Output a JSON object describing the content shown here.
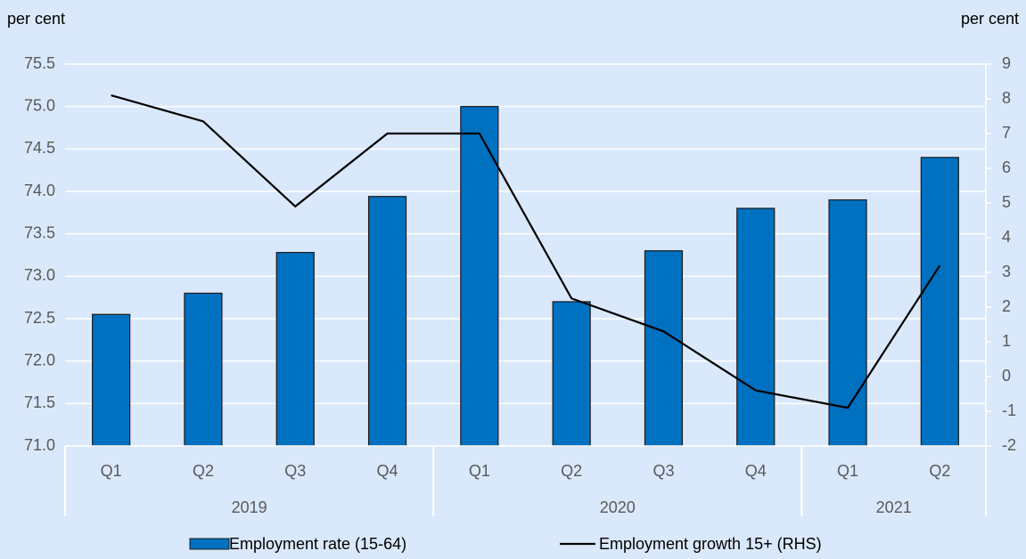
{
  "chart_data": {
    "type": "bar",
    "y_label": "per cent",
    "y2_label": "per cent",
    "groups": [
      {
        "label": "2019",
        "categories": [
          "Q1",
          "Q2",
          "Q3",
          "Q4"
        ]
      },
      {
        "label": "2020",
        "categories": [
          "Q1",
          "Q2",
          "Q3",
          "Q4"
        ]
      },
      {
        "label": "2021",
        "categories": [
          "Q1",
          "Q2"
        ]
      }
    ],
    "series": [
      {
        "name": "Employment rate (15-64)",
        "type": "bar",
        "color": "#0070c0",
        "values": [
          72.55,
          72.8,
          73.28,
          73.94,
          75.0,
          72.7,
          73.3,
          73.8,
          73.9,
          74.4
        ]
      },
      {
        "name": "Employment growth 15+ (RHS)",
        "type": "line",
        "color": "#000000",
        "axis": "y2",
        "values": [
          8.1,
          7.35,
          4.9,
          7.0,
          7.0,
          2.25,
          1.3,
          -0.4,
          -0.9,
          3.2
        ]
      }
    ],
    "ylim": [
      71,
      75.5
    ],
    "yticks": [
      {
        "value": 71,
        "label": "71.0"
      },
      71.5,
      {
        "value": 72,
        "label": "72.0"
      },
      72.5,
      {
        "value": 73,
        "label": "73.0"
      },
      73.5,
      {
        "value": 74,
        "label": "74.0"
      },
      74.5,
      {
        "value": 75,
        "label": "75.0"
      },
      75.5
    ],
    "y2lim": [
      -2,
      9
    ],
    "y2ticks": [
      -2,
      -1,
      0,
      1,
      2,
      3,
      4,
      5,
      6,
      7,
      8,
      9
    ],
    "grid": true,
    "legend": "bottom"
  }
}
